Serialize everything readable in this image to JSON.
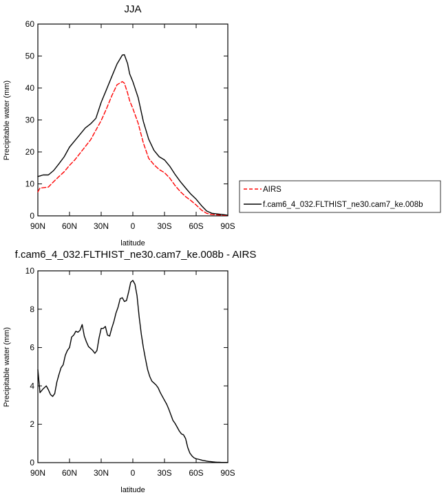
{
  "chart_data": [
    {
      "type": "line",
      "title": "JJA",
      "xlabel": "latitude",
      "ylabel": "Precipitable water (mm)",
      "xlim": [
        90,
        -90
      ],
      "ylim": [
        0,
        60
      ],
      "x_ticks": [
        90,
        60,
        30,
        0,
        -30,
        -60,
        -90
      ],
      "x_tick_labels": [
        "90N",
        "60N",
        "30N",
        "0",
        "30S",
        "60S",
        "90S"
      ],
      "y_ticks": [
        0,
        10,
        20,
        30,
        40,
        50,
        60
      ],
      "y_tick_labels": [
        "0",
        "10",
        "20",
        "30",
        "40",
        "50",
        "60"
      ],
      "grid": false,
      "legend": "right",
      "series": [
        {
          "name": "AIRS",
          "color": "#ff0000",
          "dash": "dashed",
          "x": [
            90,
            88,
            85,
            80,
            75,
            70,
            65,
            60,
            55,
            50,
            45,
            40,
            35,
            30,
            25,
            20,
            15,
            10,
            8,
            5,
            3,
            0,
            -5,
            -10,
            -15,
            -20,
            -25,
            -30,
            -35,
            -40,
            -45,
            -50,
            -55,
            -60,
            -65,
            -70,
            -75,
            -80,
            -85,
            -90
          ],
          "y": [
            7.5,
            8.7,
            8.8,
            9.0,
            10.7,
            12.3,
            13.8,
            15.8,
            17.5,
            19.6,
            21.7,
            23.8,
            26.8,
            29.8,
            33.5,
            37.5,
            41.0,
            42.0,
            41.5,
            38.5,
            36.0,
            33.6,
            29.0,
            22.8,
            18.0,
            16.0,
            14.5,
            13.5,
            11.8,
            9.5,
            7.6,
            6.0,
            4.8,
            3.4,
            1.8,
            0.8,
            0.4,
            0.3,
            0.2,
            0.1
          ]
        },
        {
          "name": "f.cam6_4_032.FLTHIST_ne30.cam7_ke.008b",
          "color": "#000000",
          "dash": "solid",
          "x": [
            90,
            88,
            85,
            80,
            75,
            70,
            65,
            60,
            55,
            50,
            45,
            40,
            35,
            30,
            25,
            20,
            15,
            10,
            8,
            5,
            3,
            0,
            -5,
            -10,
            -15,
            -20,
            -25,
            -30,
            -35,
            -40,
            -45,
            -50,
            -55,
            -60,
            -65,
            -70,
            -75,
            -80,
            -85,
            -90
          ],
          "y": [
            12.3,
            12.5,
            12.8,
            12.8,
            14.2,
            16.3,
            18.5,
            21.5,
            23.5,
            25.5,
            27.5,
            28.8,
            30.5,
            35.5,
            39.5,
            43.5,
            47.5,
            50.3,
            50.4,
            47.7,
            44.4,
            42.0,
            37.0,
            29.5,
            24.0,
            20.5,
            18.5,
            17.5,
            15.5,
            13.0,
            10.7,
            8.7,
            6.8,
            5.2,
            3.2,
            1.5,
            0.8,
            0.6,
            0.4,
            0.2
          ]
        }
      ]
    },
    {
      "type": "line",
      "title": "f.cam6_4_032.FLTHIST_ne30.cam7_ke.008b - AIRS",
      "xlabel": "latitude",
      "ylabel": "Precipitable water (mm)",
      "xlim": [
        90,
        -90
      ],
      "ylim": [
        0,
        10
      ],
      "x_ticks": [
        90,
        60,
        30,
        0,
        -30,
        -60,
        -90
      ],
      "x_tick_labels": [
        "90N",
        "60N",
        "30N",
        "0",
        "30S",
        "60S",
        "90S"
      ],
      "y_ticks": [
        0,
        2,
        4,
        6,
        8,
        10
      ],
      "y_tick_labels": [
        "0",
        "2",
        "4",
        "6",
        "8",
        "10"
      ],
      "grid": false,
      "legend": "none",
      "series": [
        {
          "name": "",
          "color": "#000000",
          "dash": "solid",
          "x": [
            90,
            88,
            85,
            82,
            80,
            78,
            76,
            74,
            72,
            70,
            68,
            66,
            64,
            62,
            60,
            58,
            56,
            54,
            52,
            50,
            48,
            46,
            44,
            42,
            40,
            38,
            36,
            34,
            32,
            30,
            28,
            26,
            24,
            22,
            20,
            18,
            16,
            14,
            12,
            10,
            8,
            6,
            4,
            2,
            0,
            -2,
            -4,
            -6,
            -8,
            -10,
            -12,
            -14,
            -16,
            -18,
            -20,
            -22,
            -24,
            -26,
            -28,
            -30,
            -32,
            -34,
            -36,
            -38,
            -40,
            -42,
            -44,
            -46,
            -48,
            -50,
            -52,
            -54,
            -56,
            -58,
            -60,
            -62,
            -64,
            -66,
            -68,
            -70,
            -72,
            -74,
            -76,
            -78,
            -80,
            -82,
            -84,
            -86,
            -88,
            -90
          ],
          "y": [
            4.85,
            3.65,
            3.85,
            4.0,
            3.8,
            3.55,
            3.45,
            3.6,
            4.2,
            4.6,
            4.95,
            5.1,
            5.6,
            5.85,
            6.0,
            6.55,
            6.65,
            6.85,
            6.8,
            6.9,
            7.2,
            6.6,
            6.3,
            6.05,
            5.95,
            5.85,
            5.7,
            5.85,
            6.5,
            7.0,
            7.0,
            7.1,
            6.65,
            6.6,
            7.0,
            7.35,
            7.8,
            8.1,
            8.55,
            8.6,
            8.4,
            8.45,
            8.9,
            9.4,
            9.5,
            9.3,
            8.7,
            7.6,
            6.7,
            6.0,
            5.4,
            4.85,
            4.5,
            4.25,
            4.15,
            4.05,
            3.9,
            3.65,
            3.45,
            3.25,
            3.05,
            2.8,
            2.5,
            2.2,
            2.05,
            1.85,
            1.65,
            1.5,
            1.45,
            1.25,
            0.8,
            0.5,
            0.35,
            0.25,
            0.2,
            0.18,
            0.15,
            0.12,
            0.1,
            0.08,
            0.06,
            0.05,
            0.04,
            0.03,
            0.02,
            0.02,
            0.01,
            0.01,
            0.01,
            0.01
          ]
        }
      ]
    }
  ]
}
